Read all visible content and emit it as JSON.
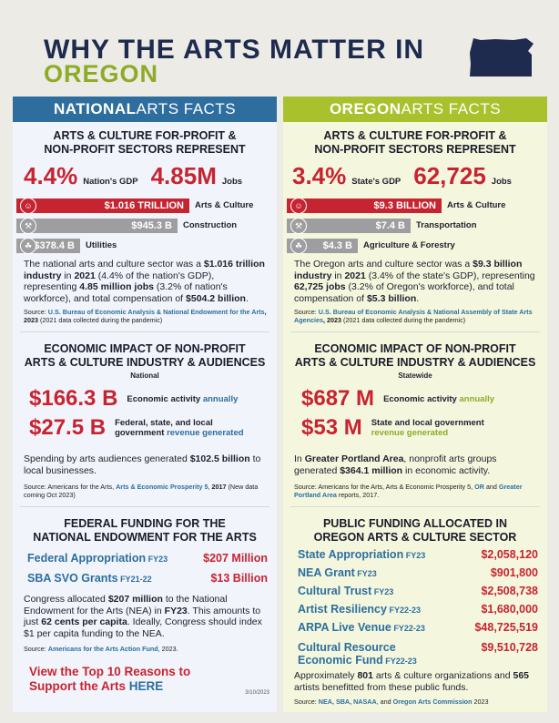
{
  "header": {
    "title_line1": "WHY THE ARTS MATTER IN",
    "title_line2": "OREGON",
    "map_icon": "oregon-state-shape-icon"
  },
  "national": {
    "banner_bold": "NATIONAL",
    "banner_rest": " ARTS FACTS",
    "heading_line1": "ARTS & CULTURE FOR-PROFIT &",
    "heading_line2": "NON-PROFIT SECTORS REPRESENT",
    "gdp_value": "4.4%",
    "gdp_label": "Nation's GDP",
    "jobs_value": "4.85M",
    "jobs_label": "Jobs",
    "bars": [
      {
        "value": "$1.016 TRILLION",
        "label": "Arts & Culture",
        "icon": "theater-masks-icon",
        "color": "#c72432",
        "share": 1.0
      },
      {
        "value": "$945.3 B",
        "label": "Construction",
        "icon": "construction-icon",
        "color": "#9e9ea1",
        "share": 0.93
      },
      {
        "value": "$378.4 B",
        "label": "Utilities",
        "icon": "utilities-icon",
        "color": "#9e9ea1",
        "share": 0.37
      }
    ],
    "para_1": "The national arts and culture sector was a ",
    "para_b1": "$1.016 trillion industry",
    "para_2": " in ",
    "para_b2": "2021",
    "para_3": " (4.4% of the nation's GDP), representing ",
    "para_b3": "4.85 million jobs",
    "para_4": " (3.2% of nation's workforce), and total compensation of ",
    "para_b4": "$504.2 billion",
    "para_5": ".",
    "source_prefix": "Source: ",
    "source_link": "U.S. Bureau of Economic Analysis & National Endowment for the Arts",
    "source_year": ", 2023",
    "source_rest": " (2021 data collected during the pandemic)",
    "econ_heading_line1": "ECONOMIC IMPACT OF NON-PROFIT",
    "econ_heading_line2": "ARTS & CULTURE INDUSTRY & AUDIENCES",
    "econ_sub": "National",
    "econ_1_value": "$166.3 B",
    "econ_1_label": "Economic activity ",
    "econ_1_highlight": "annually",
    "econ_2_value": "$27.5 B",
    "econ_2_label_line1": "Federal, state, and local",
    "econ_2_label_line2": "government ",
    "econ_2_highlight": "revenue generated",
    "econ_para_1": "Spending by arts audiences generated ",
    "econ_para_b": "$102.5 billion",
    "econ_para_2": " to local businesses.",
    "econ_source_1": "Source: Americans for the Arts, ",
    "econ_source_link": "Arts & Economic Prosperity 5",
    "econ_source_2": ", ",
    "econ_source_year": "2017",
    "econ_source_3": " (New data coming Oct 2023)",
    "fed_heading_line1": "FEDERAL FUNDING FOR THE",
    "fed_heading_line2": "NATIONAL ENDOWMENT FOR THE ARTS",
    "funding": [
      {
        "name": "Federal Appropriation",
        "fy": " FY23",
        "value": "$207 Million"
      },
      {
        "name": "SBA SVO Grants",
        "fy": " FY21-22",
        "value": "$13 Billion"
      }
    ],
    "fed_para_1": "Congress allocated ",
    "fed_para_b1": "$207 million",
    "fed_para_2": " to the National Endowment for the Arts (NEA) in ",
    "fed_para_b2": "FY23",
    "fed_para_3": ". This amounts to just ",
    "fed_para_b3": "62 cents per capita",
    "fed_para_4": ". Ideally, Congress should index $1 per capita funding to the NEA.",
    "fed_source_1": "Source: ",
    "fed_source_link": "Americans for the Arts Action Fund",
    "fed_source_2": ", 2023.",
    "cta_line1": "View the Top 10 Reasons to",
    "cta_line2": "Support the Arts ",
    "cta_here": "HERE",
    "date": "3/10/2023"
  },
  "oregon": {
    "banner_bold": "OREGON",
    "banner_rest": " ARTS FACTS",
    "heading_line1": "ARTS & CULTURE FOR-PROFIT &",
    "heading_line2": "NON-PROFIT SECTORS REPRESENT",
    "gdp_value": "3.4%",
    "gdp_label": "State's GDP",
    "jobs_value": "62,725",
    "jobs_label": "Jobs",
    "bars": [
      {
        "value": "$9.3 BILLION",
        "label": "Arts & Culture",
        "icon": "theater-masks-icon",
        "color": "#c72432",
        "share": 1.0
      },
      {
        "value": "$7.4 B",
        "label": "Transportation",
        "icon": "transportation-icon",
        "color": "#9e9ea1",
        "share": 0.8
      },
      {
        "value": "$4.3 B",
        "label": "Agriculture & Forestry",
        "icon": "leaf-icon",
        "color": "#9e9ea1",
        "share": 0.46
      }
    ],
    "para_1": "The Oregon arts and culture sector was a ",
    "para_b1": "$9.3 billion industry",
    "para_2": " in ",
    "para_b2": "2021",
    "para_3": " (3.4% of the state's GDP), representing ",
    "para_b3": "62,725 jobs",
    "para_4": " (3.2% of Oregon's workforce), and total compensation of ",
    "para_b4": "$5.3 billion",
    "para_5": ".",
    "source_prefix": "Source: ",
    "source_link": "U.S. Bureau of Economic Analysis & National Assembly of State Arts Agencies",
    "source_year": ", 2023",
    "source_rest": " (2021 data collected during the pandemic)",
    "econ_heading_line1": "ECONOMIC IMPACT OF NON-PROFIT",
    "econ_heading_line2": "ARTS & CULTURE INDUSTRY & AUDIENCES",
    "econ_sub": "Statewide",
    "econ_1_value": "$687 M",
    "econ_1_label": "Economic activity ",
    "econ_1_highlight": "annually",
    "econ_2_value": "$53 M",
    "econ_2_label_line1": "State and local government",
    "econ_2_highlight": "revenue generated",
    "econ_para_1": "In ",
    "econ_para_b1": "Greater Portland Area",
    "econ_para_2": ", nonprofit arts groups generated ",
    "econ_para_b2": "$364.1 million",
    "econ_para_3": " in economic activity.",
    "econ_source_1": "Source: Americans for the Arts, Arts & Economic Prosperity 5, ",
    "econ_source_link1": "OR",
    "econ_source_2": " and ",
    "econ_source_link2": "Greater Portland Area",
    "econ_source_3": " reports, 2017.",
    "pub_heading_line1": "PUBLIC FUNDING ALLOCATED IN",
    "pub_heading_line2": "OREGON ARTS & CULTURE SECTOR",
    "funding": [
      {
        "name": "State Appropriation",
        "fy": " FY23",
        "value": "$2,058,120"
      },
      {
        "name": "NEA Grant",
        "fy": " FY23",
        "value": "$901,800"
      },
      {
        "name": "Cultural Trust",
        "fy": " FY23",
        "value": "$2,508,738"
      },
      {
        "name": "Artist Resiliency",
        "fy": " FY22-23",
        "value": "$1,680,000"
      },
      {
        "name": "ARPA Live Venue",
        "fy": " FY22-23",
        "value": "$48,725,519"
      }
    ],
    "cultural_name_line1": "Cultural Resource",
    "cultural_name_line2": "Economic Fund",
    "cultural_fy": " FY22-23",
    "cultural_value": "$9,510,728",
    "pub_para_1": "Approximately ",
    "pub_para_b1": "801",
    "pub_para_2": " arts & culture organizations and ",
    "pub_para_b2": "565",
    "pub_para_3": " artists benefitted from these public funds.",
    "pub_source_1": "Source: ",
    "pub_source_link": "NEA, SBA, NASAA",
    "pub_source_2": ", and ",
    "pub_source_link2": "Oregon Arts Commission",
    "pub_source_3": " 2023"
  },
  "colors": {
    "red": "#c72432",
    "navy": "#1e2a4e",
    "blue": "#2d6e9f",
    "green": "#a9c12c",
    "gray": "#9e9ea1"
  }
}
